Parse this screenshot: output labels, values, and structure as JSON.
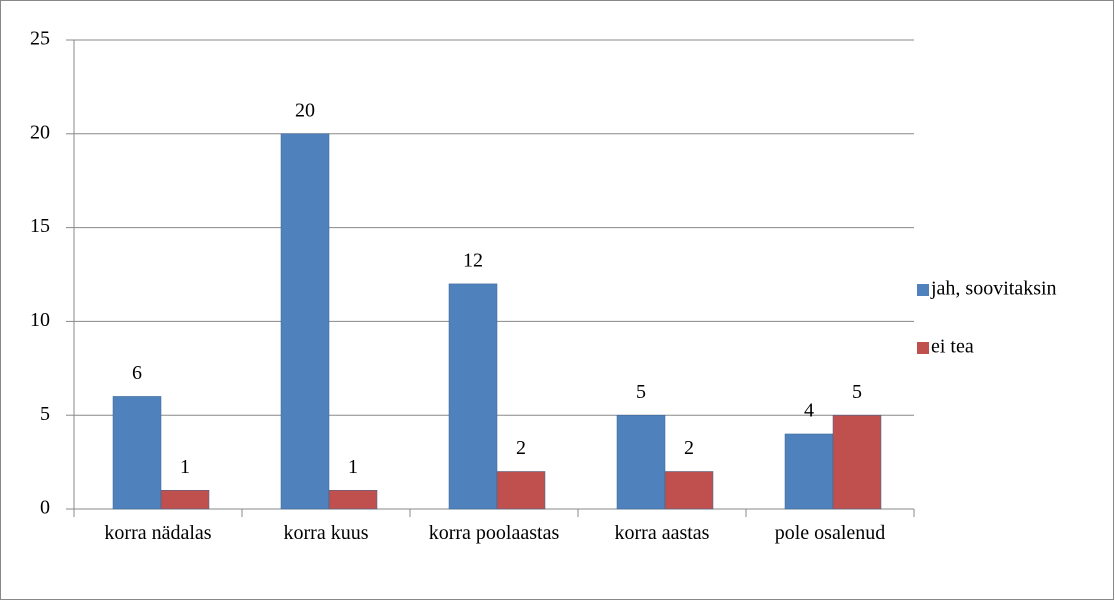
{
  "chart_data": {
    "type": "bar",
    "categories": [
      "korra nädalas",
      "korra kuus",
      "korra poolaastas",
      "korra aastas",
      "pole osalenud"
    ],
    "series": [
      {
        "name": "jah, soovitaksin",
        "color": "#4f81bd",
        "values": [
          6,
          20,
          12,
          5,
          4
        ]
      },
      {
        "name": "ei tea",
        "color": "#c0504d",
        "values": [
          1,
          1,
          2,
          2,
          5
        ]
      }
    ],
    "ylim": [
      0,
      25
    ],
    "yticks": [
      0,
      5,
      10,
      15,
      20,
      25
    ],
    "grid": true,
    "legend": "right"
  }
}
